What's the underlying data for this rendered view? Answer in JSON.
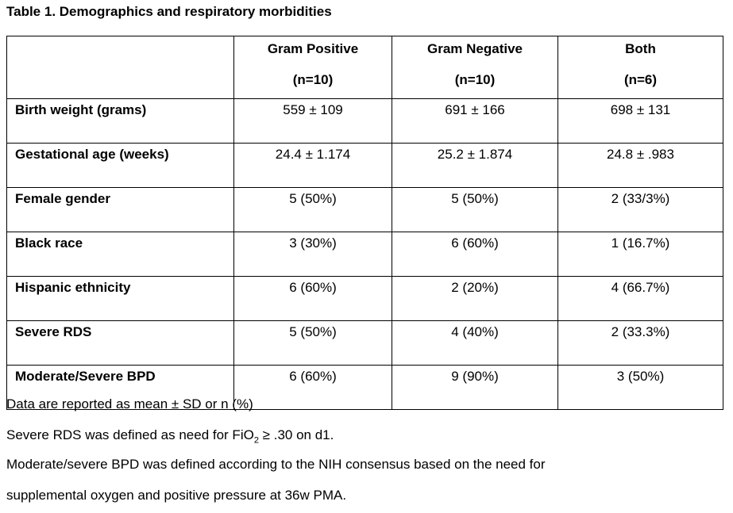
{
  "title": "Table 1. Demographics and respiratory morbidities",
  "table": {
    "headers": [
      {
        "label": "",
        "n": ""
      },
      {
        "label": "Gram Positive",
        "n": "(n=10)"
      },
      {
        "label": "Gram Negative",
        "n": "(n=10)"
      },
      {
        "label": "Both",
        "n": "(n=6)"
      }
    ],
    "rows": [
      {
        "label": "Birth weight (grams)",
        "values": [
          "559 ± 109",
          "691 ± 166",
          "698 ± 131"
        ]
      },
      {
        "label": "Gestational age (weeks)",
        "values": [
          "24.4 ± 1.174",
          "25.2 ± 1.874",
          "24.8 ± .983"
        ]
      },
      {
        "label": "Female gender",
        "values": [
          "5 (50%)",
          "5 (50%)",
          "2 (33/3%)"
        ]
      },
      {
        "label": "Black race",
        "values": [
          "3 (30%)",
          "6 (60%)",
          "1 (16.7%)"
        ]
      },
      {
        "label": "Hispanic ethnicity",
        "values": [
          "6 (60%)",
          "2 (20%)",
          "4 (66.7%)"
        ]
      },
      {
        "label": "Severe RDS",
        "values": [
          "5 (50%)",
          "4 (40%)",
          "2 (33.3%)"
        ]
      },
      {
        "label": "Moderate/Severe BPD",
        "values": [
          "6 (60%)",
          "9 (90%)",
          "3 (50%)"
        ]
      }
    ]
  },
  "notes": {
    "line1": "Data are reported as mean ± SD or n (%)",
    "line2_prefix": "Severe RDS was defined as need for FiO",
    "line2_sub": "2",
    "line2_suffix": " ≥ .30 on d1.",
    "line3": "Moderate/severe BPD was defined according to the NIH consensus based on the need for",
    "line4": "supplemental oxygen and positive pressure at 36w PMA."
  }
}
